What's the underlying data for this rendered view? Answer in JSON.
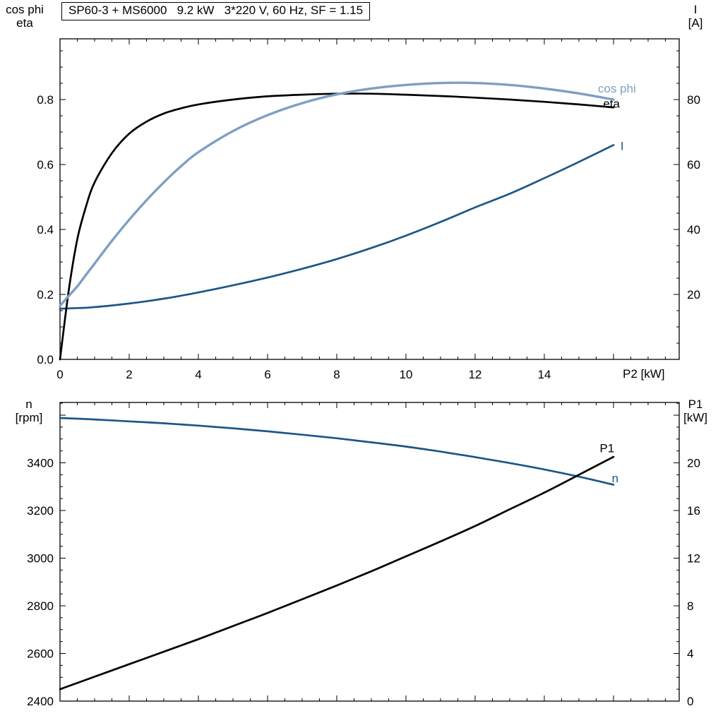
{
  "title_box": {
    "text": "SP60-3 + MS6000   9.2 kW   3*220 V, 60 Hz, SF = 1.15"
  },
  "axis_corner_labels": {
    "top_left_line1": "cos phi",
    "top_left_line2": "eta",
    "top_right_line1": "I",
    "top_right_line2": "[A]",
    "x_axis_label": "P2 [kW]",
    "bottom_left_line1": "n",
    "bottom_left_line2": "[rpm]",
    "bottom_right_line1": "P1",
    "bottom_right_line2": "[kW]"
  },
  "colors": {
    "black": "#000000",
    "light_blue": "#7e9fc2",
    "dark_blue": "#1c5687"
  },
  "chart_data": [
    {
      "type": "line",
      "title": "SP60-3 + MS6000   9.2 kW   3*220 V, 60 Hz, SF = 1.15",
      "xlabel": "P2 [kW]",
      "ylabel_left": "cos phi / eta",
      "ylabel_right": "I [A]",
      "grid": false,
      "x_axis": {
        "min": 0,
        "max": 17.9,
        "major_step": 2,
        "minor_step": 0.5,
        "tick_values": [
          0,
          2,
          4,
          6,
          8,
          10,
          12,
          14
        ],
        "tick_labels": [
          "0",
          "2",
          "4",
          "6",
          "8",
          "10",
          "12",
          "14"
        ]
      },
      "left_axis": {
        "min": 0,
        "max": 0.987,
        "major_step": 0.2,
        "minor_step": 0.05,
        "tick_values": [
          0,
          0.2,
          0.4,
          0.6,
          0.8
        ],
        "tick_labels": [
          "0.0",
          "0.2",
          "0.4",
          "0.6",
          "0.8"
        ]
      },
      "right_axis": {
        "min": 0,
        "max": 98.7,
        "major_step": 20,
        "minor_step": 5,
        "tick_values": [
          20,
          40,
          60,
          80
        ],
        "tick_labels": [
          "20",
          "40",
          "60",
          "80"
        ]
      },
      "series": [
        {
          "id": "current",
          "name": "I",
          "axis": "right",
          "color": "#1c5687",
          "width": 2.7,
          "x": [
            0,
            0.25,
            0.5,
            0.75,
            1,
            1.5,
            2,
            2.5,
            3,
            3.5,
            4,
            5,
            6,
            7,
            8,
            9,
            10,
            11,
            12,
            13,
            14,
            15,
            16
          ],
          "y": [
            15.6,
            15.7,
            15.8,
            15.9,
            16.1,
            16.6,
            17.2,
            17.9,
            18.7,
            19.6,
            20.6,
            22.8,
            25.2,
            27.9,
            30.9,
            34.3,
            38.1,
            42.3,
            46.8,
            51.0,
            55.8,
            60.8,
            66.0
          ],
          "label": {
            "text": "I",
            "x": 16.2,
            "y": 64.5
          }
        },
        {
          "id": "eta",
          "name": "eta",
          "axis": "left",
          "color": "#000000",
          "width": 2.7,
          "x": [
            0,
            0.25,
            0.5,
            0.75,
            1,
            1.5,
            2,
            2.5,
            3,
            3.5,
            4,
            5,
            6,
            7,
            8,
            9,
            10,
            11,
            12,
            13,
            14,
            15,
            16
          ],
          "y": [
            0,
            0.21,
            0.37,
            0.47,
            0.545,
            0.635,
            0.695,
            0.732,
            0.757,
            0.773,
            0.785,
            0.8,
            0.81,
            0.815,
            0.818,
            0.818,
            0.815,
            0.811,
            0.806,
            0.8,
            0.793,
            0.785,
            0.776
          ],
          "label": {
            "text": "eta",
            "x": 15.7,
            "y": 0.775
          }
        },
        {
          "id": "cos_phi",
          "name": "cos phi",
          "axis": "left",
          "color": "#7e9fc2",
          "width": 3.4,
          "x": [
            0,
            0.25,
            0.5,
            0.75,
            1,
            1.5,
            2,
            2.5,
            3,
            3.5,
            4,
            5,
            6,
            7,
            8,
            9,
            10,
            11,
            12,
            13,
            14,
            15,
            16
          ],
          "y": [
            0.165,
            0.195,
            0.225,
            0.26,
            0.295,
            0.365,
            0.43,
            0.49,
            0.545,
            0.595,
            0.638,
            0.703,
            0.752,
            0.789,
            0.816,
            0.834,
            0.845,
            0.851,
            0.851,
            0.845,
            0.834,
            0.819,
            0.8
          ],
          "label": {
            "text": "cos phi",
            "x": 15.55,
            "y": 0.822
          }
        }
      ]
    },
    {
      "type": "line",
      "title": "",
      "xlabel": "",
      "ylabel_left": "n [rpm]",
      "ylabel_right": "P1 [kW]",
      "grid": false,
      "x_axis": {
        "min": 0,
        "max": 17.9,
        "major_step": 2,
        "minor_step": 0.5,
        "tick_values": [],
        "tick_labels": []
      },
      "left_axis": {
        "min": 2400,
        "max": 3653.3,
        "major_step": 200,
        "minor_step": 50,
        "tick_values": [
          2400,
          2600,
          2800,
          3000,
          3200,
          3400
        ],
        "tick_labels": [
          "2400",
          "2600",
          "2800",
          "3000",
          "3200",
          "3400"
        ]
      },
      "right_axis": {
        "min": 0,
        "max": 25.07,
        "major_step": 4,
        "minor_step": 1,
        "tick_values": [
          0,
          4,
          8,
          12,
          16,
          20
        ],
        "tick_labels": [
          "0",
          "4",
          "8",
          "12",
          "16",
          "20"
        ]
      },
      "series": [
        {
          "id": "n",
          "name": "n",
          "axis": "left",
          "color": "#1c5687",
          "width": 2.7,
          "x": [
            0,
            1,
            2,
            3,
            4,
            5,
            6,
            7,
            8,
            9,
            10,
            11,
            12,
            13,
            14,
            15,
            16
          ],
          "y": [
            3588,
            3582,
            3574,
            3566,
            3556,
            3545,
            3532,
            3518,
            3503,
            3486,
            3468,
            3447,
            3424,
            3399,
            3372,
            3342,
            3308
          ],
          "label": {
            "text": "n",
            "x": 15.95,
            "y": 3318
          }
        },
        {
          "id": "p1",
          "name": "P1",
          "axis": "right",
          "color": "#000000",
          "width": 2.7,
          "x": [
            0,
            1,
            2,
            3,
            4,
            5,
            6,
            7,
            8,
            9,
            10,
            11,
            12,
            13,
            14,
            15,
            16
          ],
          "y": [
            1.0,
            2.05,
            3.1,
            4.15,
            5.2,
            6.3,
            7.4,
            8.55,
            9.7,
            10.9,
            12.15,
            13.4,
            14.7,
            16.1,
            17.5,
            19.0,
            20.5
          ],
          "label": {
            "text": "P1",
            "x": 15.6,
            "y": 20.9
          }
        }
      ]
    }
  ]
}
